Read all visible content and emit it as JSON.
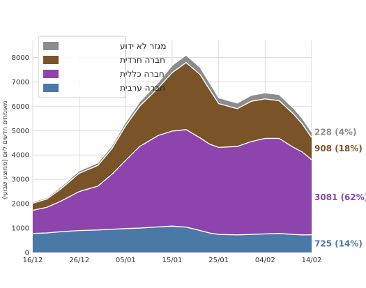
{
  "chart_data": {
    "type": "area",
    "stacked": true,
    "title": "",
    "xlabel": "",
    "ylabel": "מאומתים חדשים ליום (ממוצע שבועי)",
    "x_tick_labels": [
      "16/12",
      "26/12",
      "05/01",
      "15/01",
      "25/01",
      "04/02",
      "14/02"
    ],
    "x_range": [
      0,
      60
    ],
    "ylim": [
      0,
      8700
    ],
    "y_ticks": [
      0,
      1000,
      2000,
      3000,
      4000,
      5000,
      6000,
      7000,
      8000
    ],
    "grid": true,
    "legend_position": "top-left",
    "x": [
      0,
      3,
      6,
      10,
      14,
      17,
      20,
      23,
      27,
      30,
      33,
      36,
      38,
      40,
      44,
      47,
      50,
      53,
      56,
      58,
      60
    ],
    "series": [
      {
        "name": "חברה ערבית",
        "color": "#4a79a8",
        "values": [
          780,
          800,
          850,
          900,
          920,
          950,
          980,
          1000,
          1050,
          1080,
          1040,
          900,
          800,
          740,
          720,
          740,
          760,
          780,
          740,
          720,
          725
        ]
      },
      {
        "name": "חברה כללית",
        "color": "#8e44ad",
        "values": [
          950,
          1050,
          1250,
          1600,
          1800,
          2250,
          2800,
          3350,
          3750,
          3900,
          4000,
          3800,
          3650,
          3570,
          3630,
          3810,
          3920,
          3900,
          3580,
          3400,
          3081
        ]
      },
      {
        "name": "חברה חרדית",
        "color": "#7a5329",
        "values": [
          290,
          340,
          500,
          750,
          850,
          1050,
          1420,
          1650,
          1950,
          2400,
          2750,
          2600,
          2250,
          1800,
          1550,
          1650,
          1620,
          1550,
          1380,
          1150,
          908
        ]
      },
      {
        "name": "מגזר לא ידוע",
        "color": "#8c8c8c",
        "values": [
          60,
          60,
          80,
          100,
          110,
          120,
          150,
          180,
          230,
          300,
          310,
          300,
          280,
          240,
          230,
          250,
          250,
          250,
          240,
          230,
          228
        ]
      }
    ],
    "end_labels": [
      {
        "series": "מגזר לא ידוע",
        "value": 228,
        "text": "228 (4%)",
        "color": "#8c8c8c"
      },
      {
        "series": "חברה חרדית",
        "value": 908,
        "text": "908 (18%)",
        "color": "#7a5329"
      },
      {
        "series": "חברה כללית",
        "value": 3081,
        "text": "3081 (62%)",
        "color": "#8e44ad"
      },
      {
        "series": "חברה ערבית",
        "value": 725,
        "text": "725 (14%)",
        "color": "#4a79a8"
      }
    ],
    "legend": [
      "מגזר לא ידוע",
      "חברה חרדית",
      "חברה כללית",
      "חברה ערבית"
    ]
  }
}
